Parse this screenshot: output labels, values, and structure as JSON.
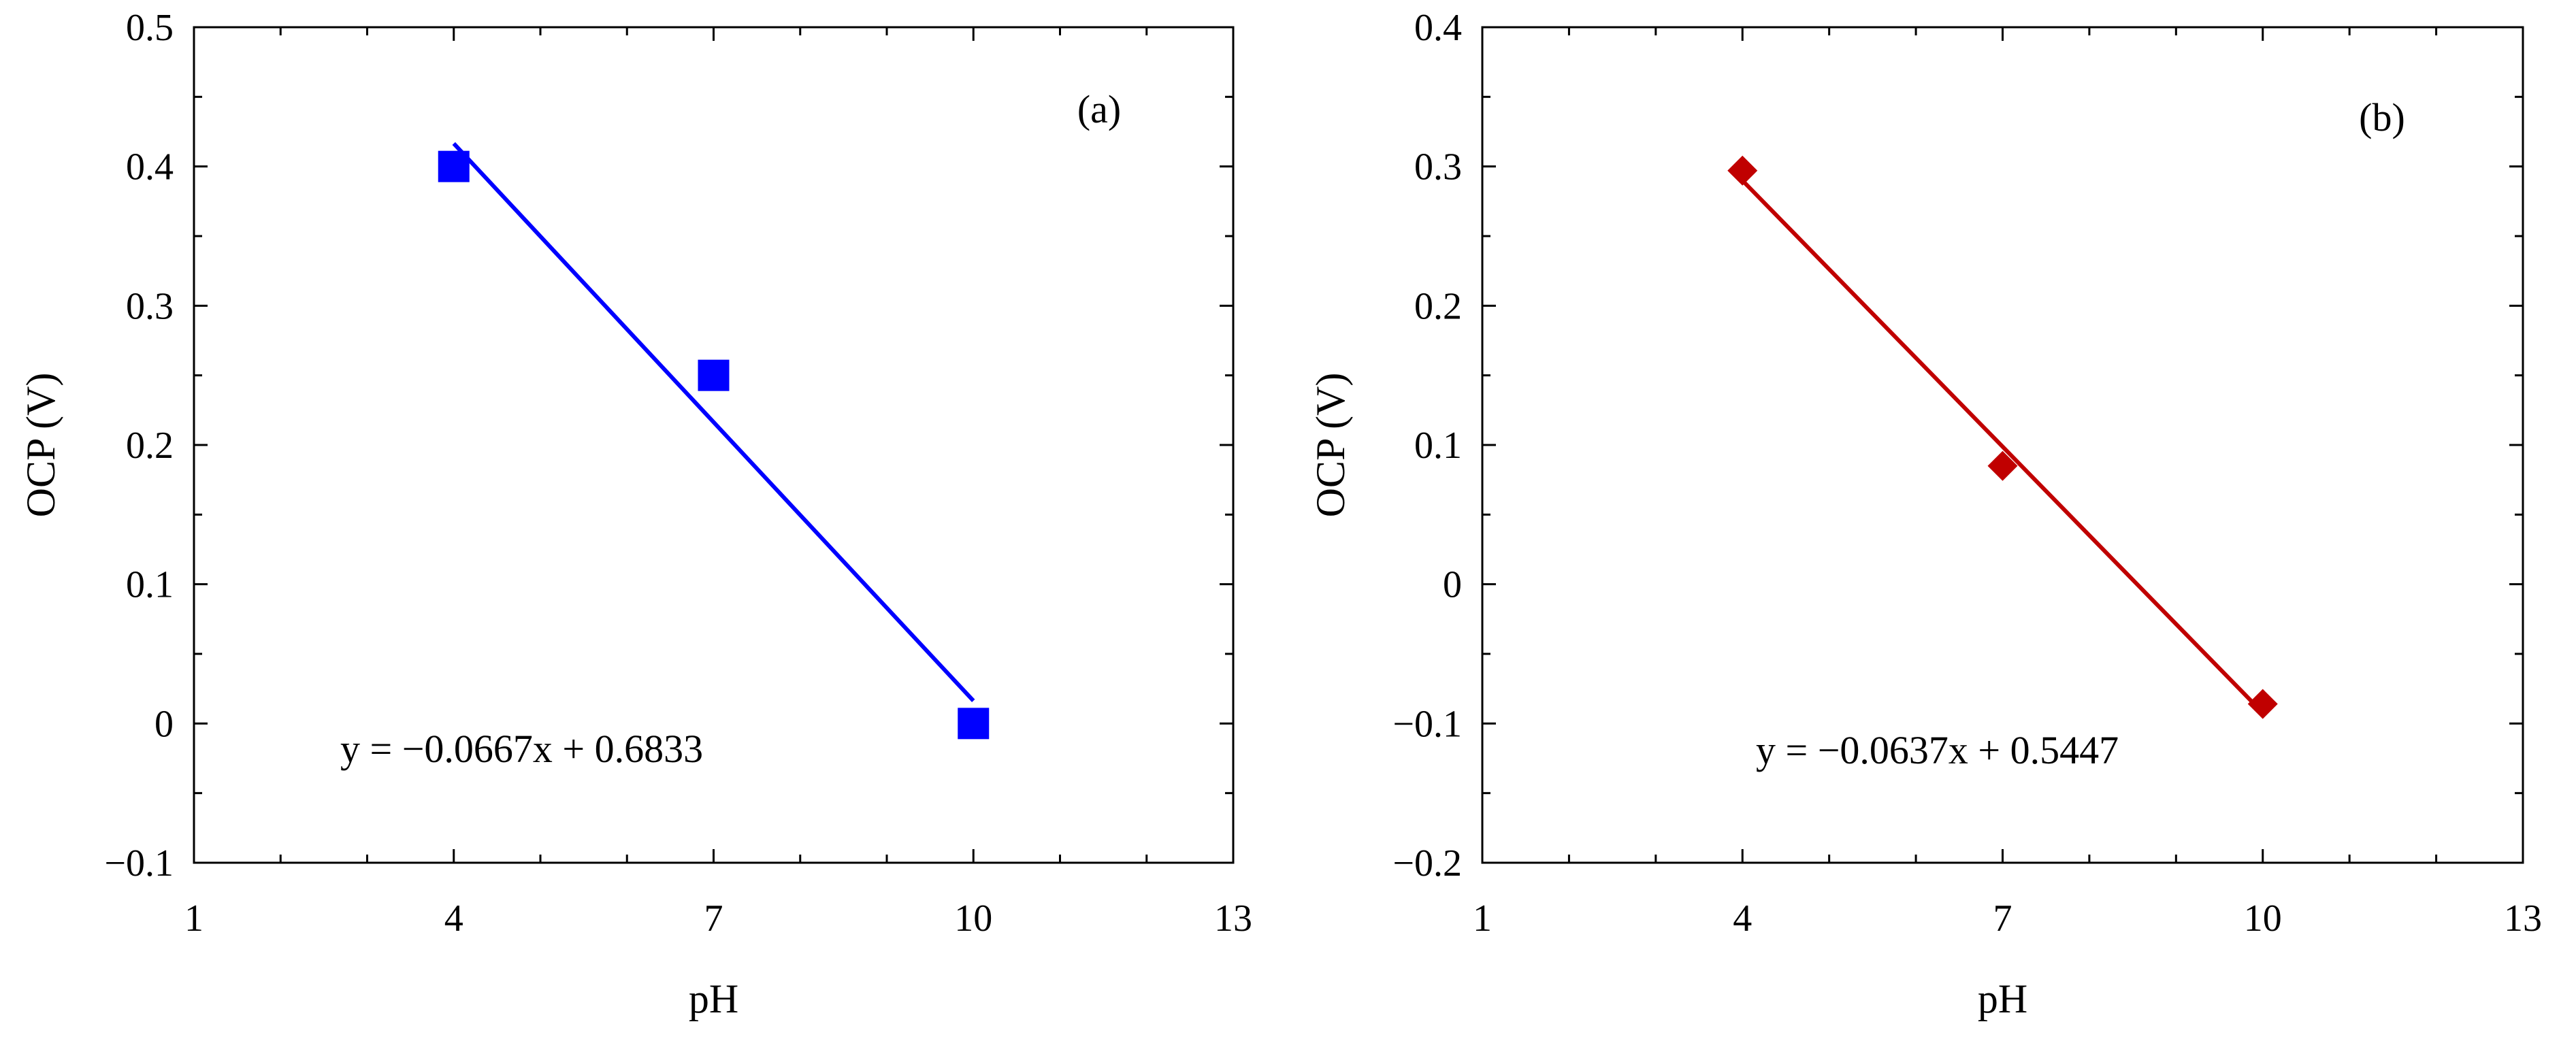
{
  "chart_data": [
    {
      "type": "scatter",
      "panel_label": "(a)",
      "xlabel": "pH",
      "ylabel": "OCP (V)",
      "xlim": [
        1,
        13
      ],
      "ylim": [
        -0.1,
        0.5
      ],
      "x_ticks": [
        1,
        4,
        7,
        10,
        13
      ],
      "y_ticks": [
        -0.1,
        0,
        0.1,
        0.2,
        0.3,
        0.4,
        0.5
      ],
      "x_tick_labels": [
        "1",
        "4",
        "7",
        "10",
        "13"
      ],
      "y_tick_labels": [
        "−0.1",
        "0",
        "0.1",
        "0.2",
        "0.3",
        "0.4",
        "0.5"
      ],
      "grid": false,
      "series": [
        {
          "marker": "square",
          "color": "#0000ff",
          "x": [
            4,
            7,
            10
          ],
          "y": [
            0.4,
            0.25,
            0.0
          ]
        }
      ],
      "trendline": {
        "slope": -0.0667,
        "intercept": 0.6833,
        "x_range": [
          4,
          10
        ],
        "color": "#0000ff"
      },
      "equation": "y = −0.0667x + 0.6833"
    },
    {
      "type": "scatter",
      "panel_label": "(b)",
      "xlabel": "pH",
      "ylabel": "OCP (V)",
      "xlim": [
        1,
        13
      ],
      "ylim": [
        -0.2,
        0.4
      ],
      "x_ticks": [
        1,
        4,
        7,
        10,
        13
      ],
      "y_ticks": [
        -0.2,
        -0.1,
        0,
        0.1,
        0.2,
        0.3,
        0.4
      ],
      "x_tick_labels": [
        "1",
        "4",
        "7",
        "10",
        "13"
      ],
      "y_tick_labels": [
        "−0.2",
        "−0.1",
        "0",
        "0.1",
        "0.2",
        "0.3",
        "0.4"
      ],
      "grid": false,
      "series": [
        {
          "marker": "diamond",
          "color": "#c00000",
          "x": [
            4,
            7,
            10
          ],
          "y": [
            0.297,
            0.085,
            -0.086
          ]
        }
      ],
      "trendline": {
        "slope": -0.0637,
        "intercept": 0.5447,
        "x_range": [
          4,
          10
        ],
        "color": "#c00000"
      },
      "equation": "y = −0.0637x + 0.5447"
    }
  ]
}
